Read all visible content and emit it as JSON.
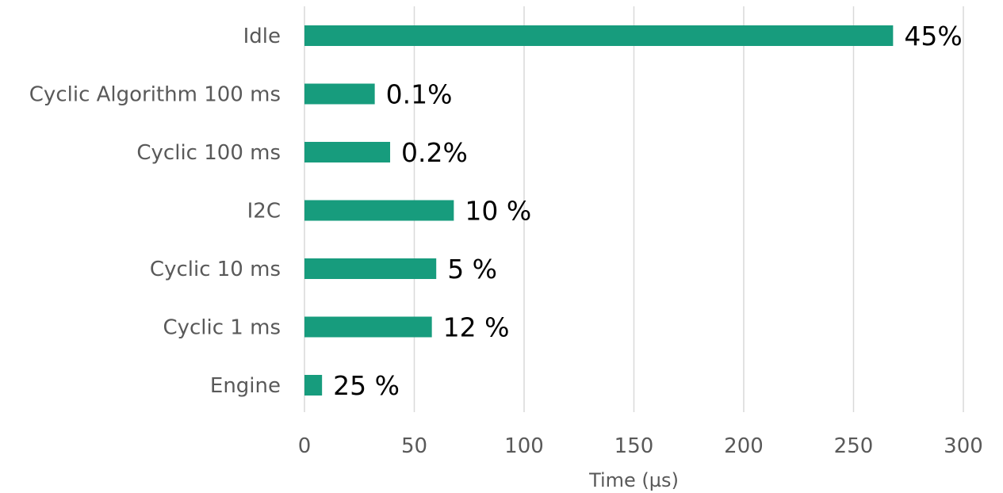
{
  "chart_data": {
    "type": "bar",
    "orientation": "horizontal",
    "categories": [
      "Idle",
      "Cyclic Algorithm 100 ms",
      "Cyclic 100 ms",
      "I2C",
      "Cyclic 10 ms",
      "Cyclic 1 ms",
      "Engine"
    ],
    "values": [
      268,
      32,
      39,
      68,
      60,
      58,
      8
    ],
    "data_labels": [
      "45%",
      "0.1%",
      "0.2%",
      "10 %",
      "5 %",
      "12 %",
      "25 %"
    ],
    "xlabel": "Time (µs)",
    "ylabel": "",
    "xlim": [
      0,
      300
    ],
    "x_ticks": [
      0,
      50,
      100,
      150,
      200,
      250,
      300
    ],
    "grid": true,
    "bar_color": "#179c7d"
  }
}
